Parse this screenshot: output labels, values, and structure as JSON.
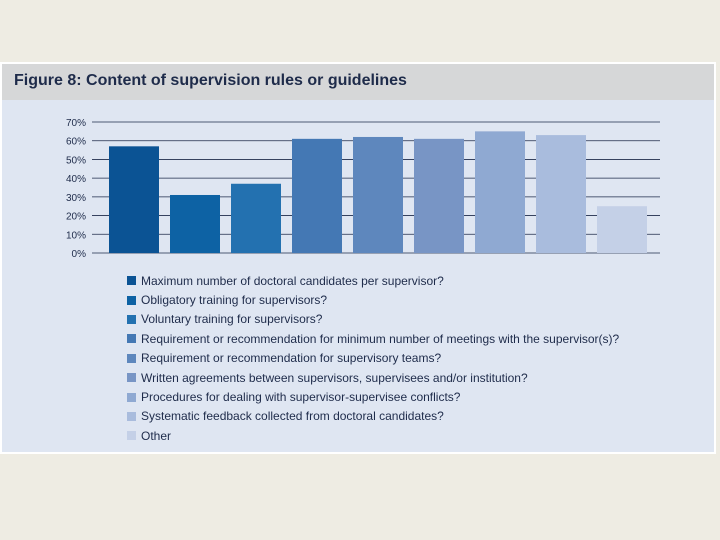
{
  "chart_data": {
    "type": "bar",
    "title": "Figure 8: Content of supervision rules or guidelines",
    "xlabel": "",
    "ylabel": "",
    "ylim": [
      0,
      70
    ],
    "yticks": [
      "70%",
      "60%",
      "50%",
      "40%",
      "30%",
      "20%",
      "10%",
      "0%"
    ],
    "grid": true,
    "legend_position": "bottom",
    "categories": [
      "Maximum number of doctoral candidates per supervisor?",
      "Obligatory training for supervisors?",
      "Voluntary training for supervisors?",
      "Requirement or recommendation for minimum number of meetings with the supervisor(s)?",
      "Requirement or recommendation for supervisory teams?",
      "Written agreements between supervisors, supervisees and/or institution?",
      "Procedures for dealing with supervisor-supervisee conflicts?",
      "Systematic feedback collected from doctoral candidates?",
      "Other"
    ],
    "values": [
      57,
      31,
      37,
      61,
      62,
      61,
      65,
      63,
      25
    ],
    "colors": [
      "#0b5394",
      "#0d62a4",
      "#2371b0",
      "#4478b4",
      "#5e87bd",
      "#7895c5",
      "#8fa9d2",
      "#a9bcdd",
      "#c4d0e7"
    ]
  }
}
